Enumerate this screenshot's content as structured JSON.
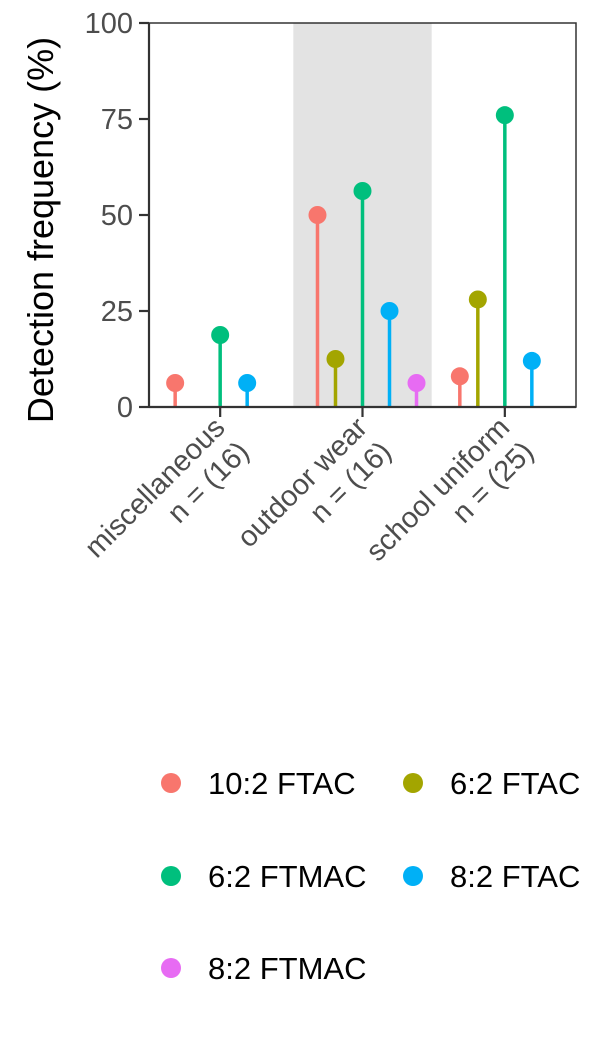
{
  "chart_data": {
    "type": "lollipop",
    "title": "",
    "xlabel": "",
    "ylabel": "Detection frequency (%)",
    "ylim": [
      0,
      100
    ],
    "yticks": [
      0,
      25,
      50,
      75,
      100
    ],
    "categories": [
      {
        "line1": "miscellaneous",
        "line2": "n = (16)"
      },
      {
        "line1": "outdoor wear",
        "line2": "n = (16)"
      },
      {
        "line1": "school uniform",
        "line2": "n = (25)"
      }
    ],
    "highlighted_category": "outdoor wear",
    "highlight_color": "#e3e3e3",
    "series": [
      {
        "name": "10:2 FTAC",
        "color": "#f8766d",
        "values": [
          6.25,
          50,
          8
        ]
      },
      {
        "name": "6:2 FTAC",
        "color": "#a3a500",
        "values": [
          0,
          12.5,
          28
        ]
      },
      {
        "name": "6:2 FTMAC",
        "color": "#00bf7d",
        "values": [
          18.75,
          56.25,
          76
        ]
      },
      {
        "name": "8:2 FTAC",
        "color": "#00b0f6",
        "values": [
          6.25,
          25,
          12
        ]
      },
      {
        "name": "8:2 FTMAC",
        "color": "#e76bf3",
        "values": [
          0,
          6.25,
          0
        ]
      }
    ],
    "legend_position": "bottom",
    "grid": false
  }
}
